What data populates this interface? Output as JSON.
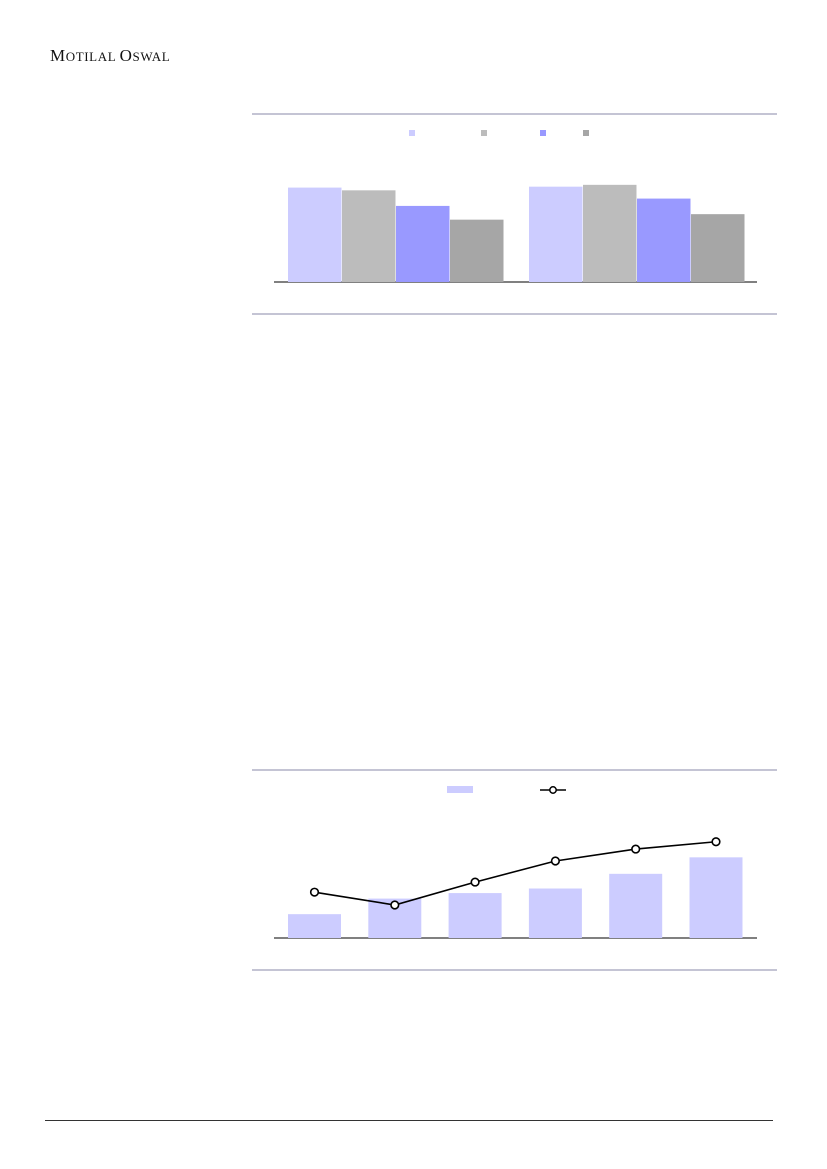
{
  "header": {
    "brand": "MOTILAL OSWAL"
  },
  "colors": {
    "rule": "#8888aa",
    "series": [
      "#ccccff",
      "#bcbcbc",
      "#9999ff",
      "#a6a6a6"
    ],
    "line": "#000000"
  },
  "chart_data": [
    {
      "type": "bar",
      "legend": [
        "",
        "",
        "",
        ""
      ],
      "legend_position": "top",
      "categories": [
        "",
        ""
      ],
      "series": [
        {
          "name": "",
          "color": "#ccccff",
          "values": [
            103,
            104
          ]
        },
        {
          "name": "",
          "color": "#bcbcbc",
          "values": [
            100,
            106
          ]
        },
        {
          "name": "",
          "color": "#9999ff",
          "values": [
            83,
            91
          ]
        },
        {
          "name": "",
          "color": "#a6a6a6",
          "values": [
            68,
            74
          ]
        }
      ],
      "ylim": [
        0,
        120
      ],
      "grid": false
    },
    {
      "type": "bar",
      "legend_position": "top",
      "categories": [
        "",
        "",
        "",
        "",
        "",
        ""
      ],
      "series": [
        {
          "name": "",
          "kind": "bar",
          "color": "#ccccff",
          "values": [
            26,
            43,
            49,
            54,
            70,
            88
          ]
        },
        {
          "name": "",
          "kind": "line",
          "color": "#000000",
          "values": [
            50,
            36,
            61,
            84,
            97,
            105
          ]
        }
      ],
      "ylim": [
        0,
        120
      ],
      "grid": false
    }
  ]
}
